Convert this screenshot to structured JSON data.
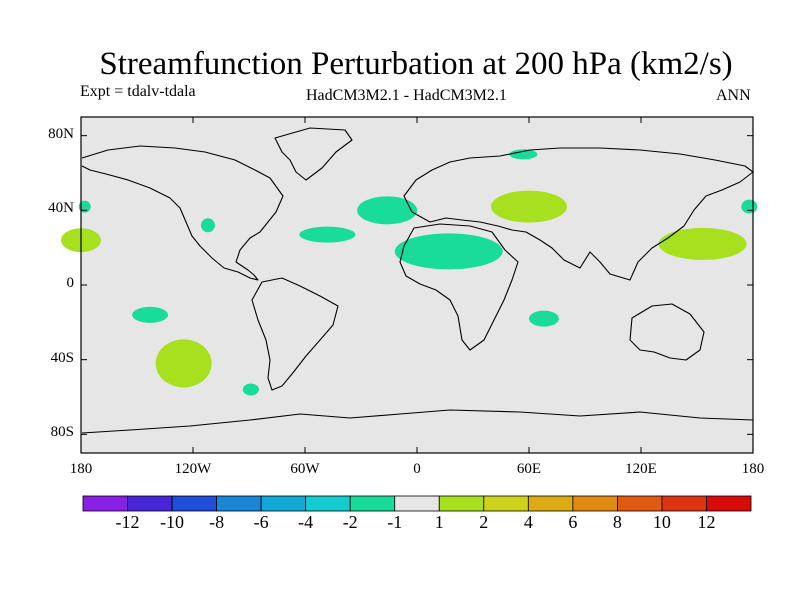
{
  "figure": {
    "title": "Streamfunction Perturbation at 200 hPa (km2/s)",
    "left_label": "Expt = tdalv-tdala",
    "center_label": "HadCM3M2.1 - HadCM3M2.1",
    "right_label": "ANN"
  },
  "chart_data": {
    "type": "map",
    "projection": "cylindrical equidistant",
    "lon_range": [
      -180,
      180
    ],
    "lat_range": [
      -90,
      90
    ],
    "x_ticks": [
      {
        "value": -180,
        "label": "180"
      },
      {
        "value": -120,
        "label": "120W"
      },
      {
        "value": -60,
        "label": "60W"
      },
      {
        "value": 0,
        "label": "0"
      },
      {
        "value": 60,
        "label": "60E"
      },
      {
        "value": 120,
        "label": "120E"
      },
      {
        "value": 180,
        "label": "180"
      }
    ],
    "y_ticks": [
      {
        "value": 80,
        "label": "80N"
      },
      {
        "value": 40,
        "label": "40N"
      },
      {
        "value": 0,
        "label": "0"
      },
      {
        "value": -40,
        "label": "40S"
      },
      {
        "value": -80,
        "label": "80S"
      }
    ],
    "colorbar": {
      "labels": [
        "-12",
        "-10",
        "-8",
        "-6",
        "-4",
        "-2",
        "-1",
        "1",
        "2",
        "4",
        "6",
        "8",
        "10",
        "12"
      ],
      "colors": [
        "#8a1fe6",
        "#4a26d9",
        "#1f4ed9",
        "#1a86d9",
        "#12a8d6",
        "#12ccd0",
        "#1adc9a",
        "#e6e6e6",
        "#a6e01f",
        "#cfd21a",
        "#dcaa12",
        "#e08a12",
        "#e05a12",
        "#dc3312",
        "#d80a0a"
      ]
    },
    "regions": [
      {
        "name": "north-atlantic-negative",
        "value_range": "-2 to -1",
        "color": "#1adc9a",
        "lon": -16,
        "lat": 40
      },
      {
        "name": "atlantic-band-negative",
        "value_range": "-2 to -1",
        "color": "#1adc9a",
        "lon": -48,
        "lat": 27
      },
      {
        "name": "north-africa-negative",
        "value_range": "-2 to -1",
        "color": "#1adc9a",
        "lon": 17,
        "lat": 18
      },
      {
        "name": "central-asia-positive",
        "value_range": "1 to 2",
        "color": "#a6e01f",
        "lon": 60,
        "lat": 42
      },
      {
        "name": "west-pacific-positive",
        "value_range": "1 to 2",
        "color": "#a6e01f",
        "lon": 153,
        "lat": 22
      },
      {
        "name": "east-pacific-positive",
        "value_range": "1 to 2",
        "color": "#a6e01f",
        "lon": -180,
        "lat": 24
      },
      {
        "name": "south-pacific-positive",
        "value_range": "1 to 2",
        "color": "#a6e01f",
        "lon": -125,
        "lat": -42
      },
      {
        "name": "indian-ocean-negative",
        "value_range": "-2 to -1",
        "color": "#1adc9a",
        "lon": 68,
        "lat": -18
      },
      {
        "name": "tropical-pacific-negative",
        "value_range": "-2 to -1",
        "color": "#1adc9a",
        "lon": -143,
        "lat": -16
      },
      {
        "name": "scandinavia-negative",
        "value_range": "-2 to -1",
        "color": "#1adc9a",
        "lon": 57,
        "lat": 70
      },
      {
        "name": "south-atlantic-negative",
        "value_range": "-2 to -1",
        "color": "#1adc9a",
        "lon": -89,
        "lat": -56
      },
      {
        "name": "west-atlantic-negative",
        "value_range": "-2 to -1",
        "color": "#1adc9a",
        "lon": -112,
        "lat": 32
      },
      {
        "name": "japan-negative",
        "value_range": "-2 to -1",
        "color": "#1adc9a",
        "lon": 178,
        "lat": 42
      },
      {
        "name": "pacific-edge-negative",
        "value_range": "-2 to -1",
        "color": "#1adc9a",
        "lon": -178,
        "lat": 42
      }
    ]
  }
}
